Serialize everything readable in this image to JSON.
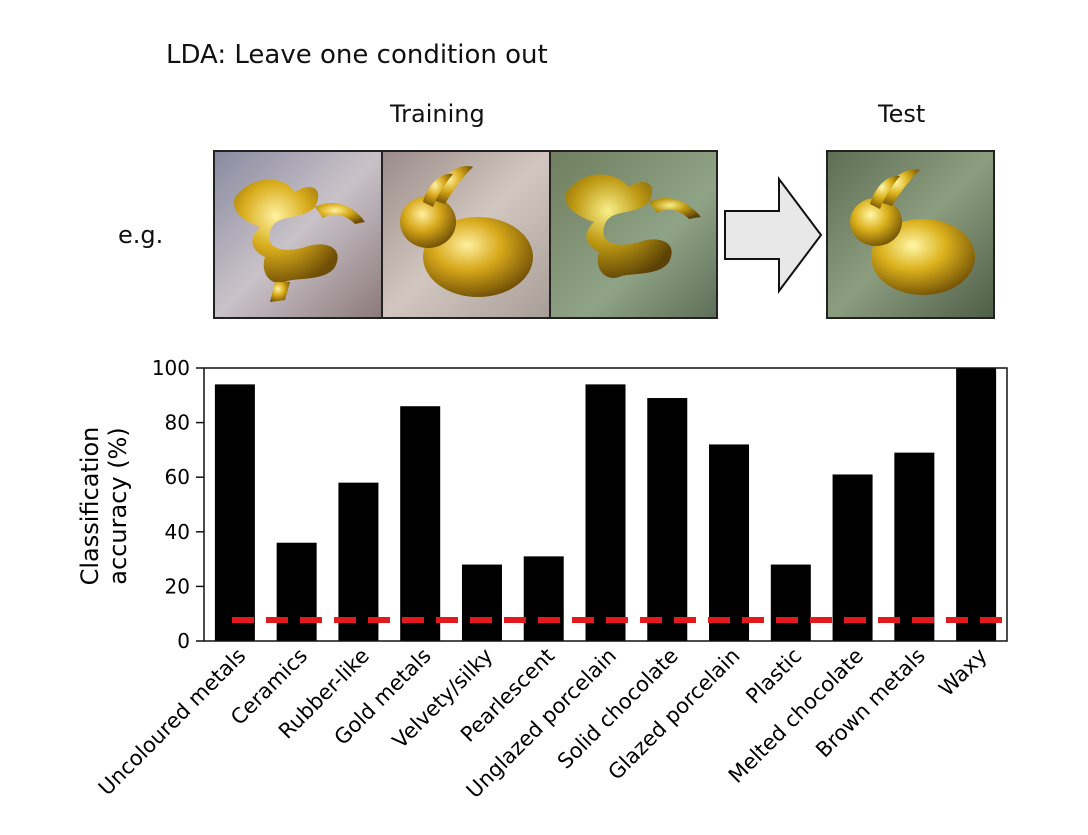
{
  "figure": {
    "title": "LDA: Leave one condition out",
    "training_label": "Training",
    "test_label": "Test",
    "example_label": "e.g.",
    "training_images": [
      "dragon-icon",
      "bunny-icon",
      "dragon-icon"
    ],
    "test_image": "bunny-icon",
    "arrow_icon": "right-arrow-icon",
    "gold_color": "#d4a714"
  },
  "chart_data": {
    "type": "bar",
    "ylabel": "Classification accuracy (%)",
    "ylim": [
      0,
      100
    ],
    "yticks": [
      0,
      20,
      40,
      60,
      80,
      100
    ],
    "categories": [
      "Uncoloured metals",
      "Ceramics",
      "Rubber-like",
      "Gold metals",
      "Velvety/silky",
      "Pearlescent",
      "Unglazed porcelain",
      "Solid chocolate",
      "Glazed porcelain",
      "Plastic",
      "Melted chocolate",
      "Brown metals",
      "Waxy"
    ],
    "values": [
      94,
      36,
      58,
      86,
      28,
      31,
      94,
      89,
      72,
      28,
      61,
      69,
      100
    ],
    "chance_level": 7.7,
    "bar_color": "#000000",
    "chance_color": "#e3191c"
  }
}
